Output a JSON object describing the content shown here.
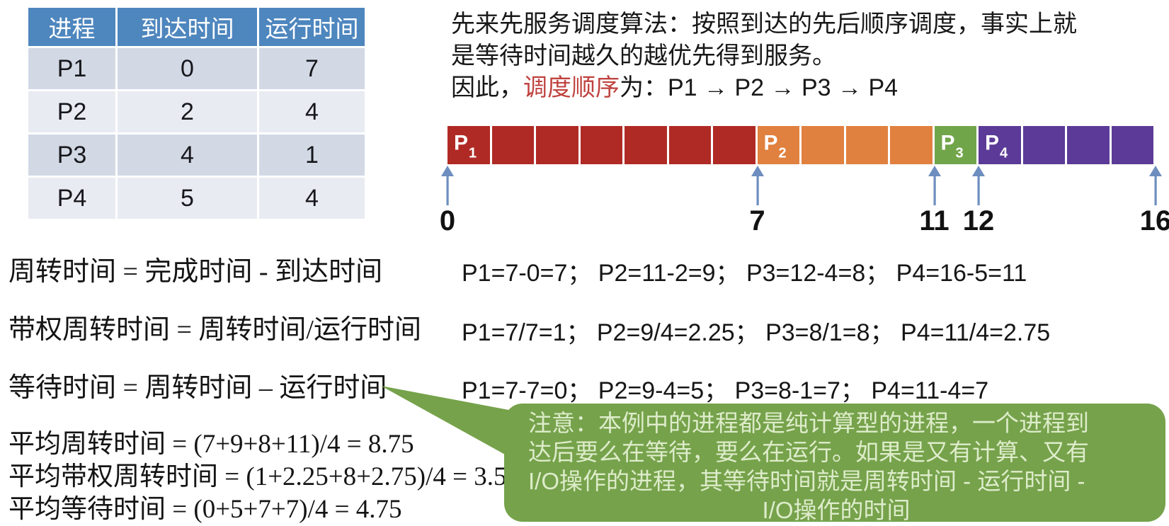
{
  "process_table": {
    "headers": [
      "进程",
      "到达时间",
      "运行时间"
    ],
    "rows": [
      [
        "P1",
        "0",
        "7"
      ],
      [
        "P2",
        "2",
        "4"
      ],
      [
        "P3",
        "4",
        "1"
      ],
      [
        "P4",
        "5",
        "4"
      ]
    ]
  },
  "intro": {
    "line1": "先来先服务调度算法：按照到达的先后顺序调度，事实上就",
    "line2": "是等待时间越久的越优先得到服务。",
    "line3_before": "因此，",
    "line3_highlight": "调度顺序",
    "line3_after": "为：P1 → P2 → P3 → P4",
    "highlight_color": "#bf4340"
  },
  "gantt": {
    "type": "gantt-timeline",
    "total_units": 16,
    "segments": [
      {
        "process": "P1",
        "start": 0,
        "end": 7,
        "color": "#b02a25"
      },
      {
        "process": "P2",
        "start": 7,
        "end": 11,
        "color": "#e0813f"
      },
      {
        "process": "P3",
        "start": 11,
        "end": 12,
        "color": "#71a54a"
      },
      {
        "process": "P4",
        "start": 12,
        "end": 16,
        "color": "#5b3b97"
      }
    ],
    "markers": [
      0,
      7,
      11,
      12,
      16
    ],
    "arrow_color": "#6d8ebf"
  },
  "formulas": [
    "周转时间 = 完成时间 - 到达时间",
    "带权周转时间 = 周转时间/运行时间",
    "等待时间 = 周转时间 – 运行时间"
  ],
  "calculations": [
    "P1=7-0=7； P2=11-2=9； P3=12-4=8； P4=16-5=11",
    "P1=7/7=1； P2=9/4=2.25； P3=8/1=8； P4=11/4=2.75",
    "P1=7-7=0； P2=9-4=5； P3=8-1=7； P4=11-4=7"
  ],
  "averages": [
    "平均周转时间 = (7+9+8+11)/4 = 8.75",
    "平均带权周转时间 = (1+2.25+8+2.75)/4 = 3.5",
    "平均等待时间 = (0+5+7+7)/4 = 4.75"
  ],
  "note": {
    "lines": [
      "注意：本例中的进程都是纯计算型的进程，一个进程到",
      "达后要么在等待，要么在运行。如果是又有计算、又有",
      "I/O操作的进程，其等待时间就是周转时间 - 运行时间 -",
      "I/O操作的时间"
    ],
    "bg_color": "#76a24b",
    "text_color": "#ddecca"
  },
  "colors": {
    "table_header_bg": "#4e86be",
    "table_row_dark": "#d2d9e5",
    "table_row_light": "#e8ebf2"
  }
}
